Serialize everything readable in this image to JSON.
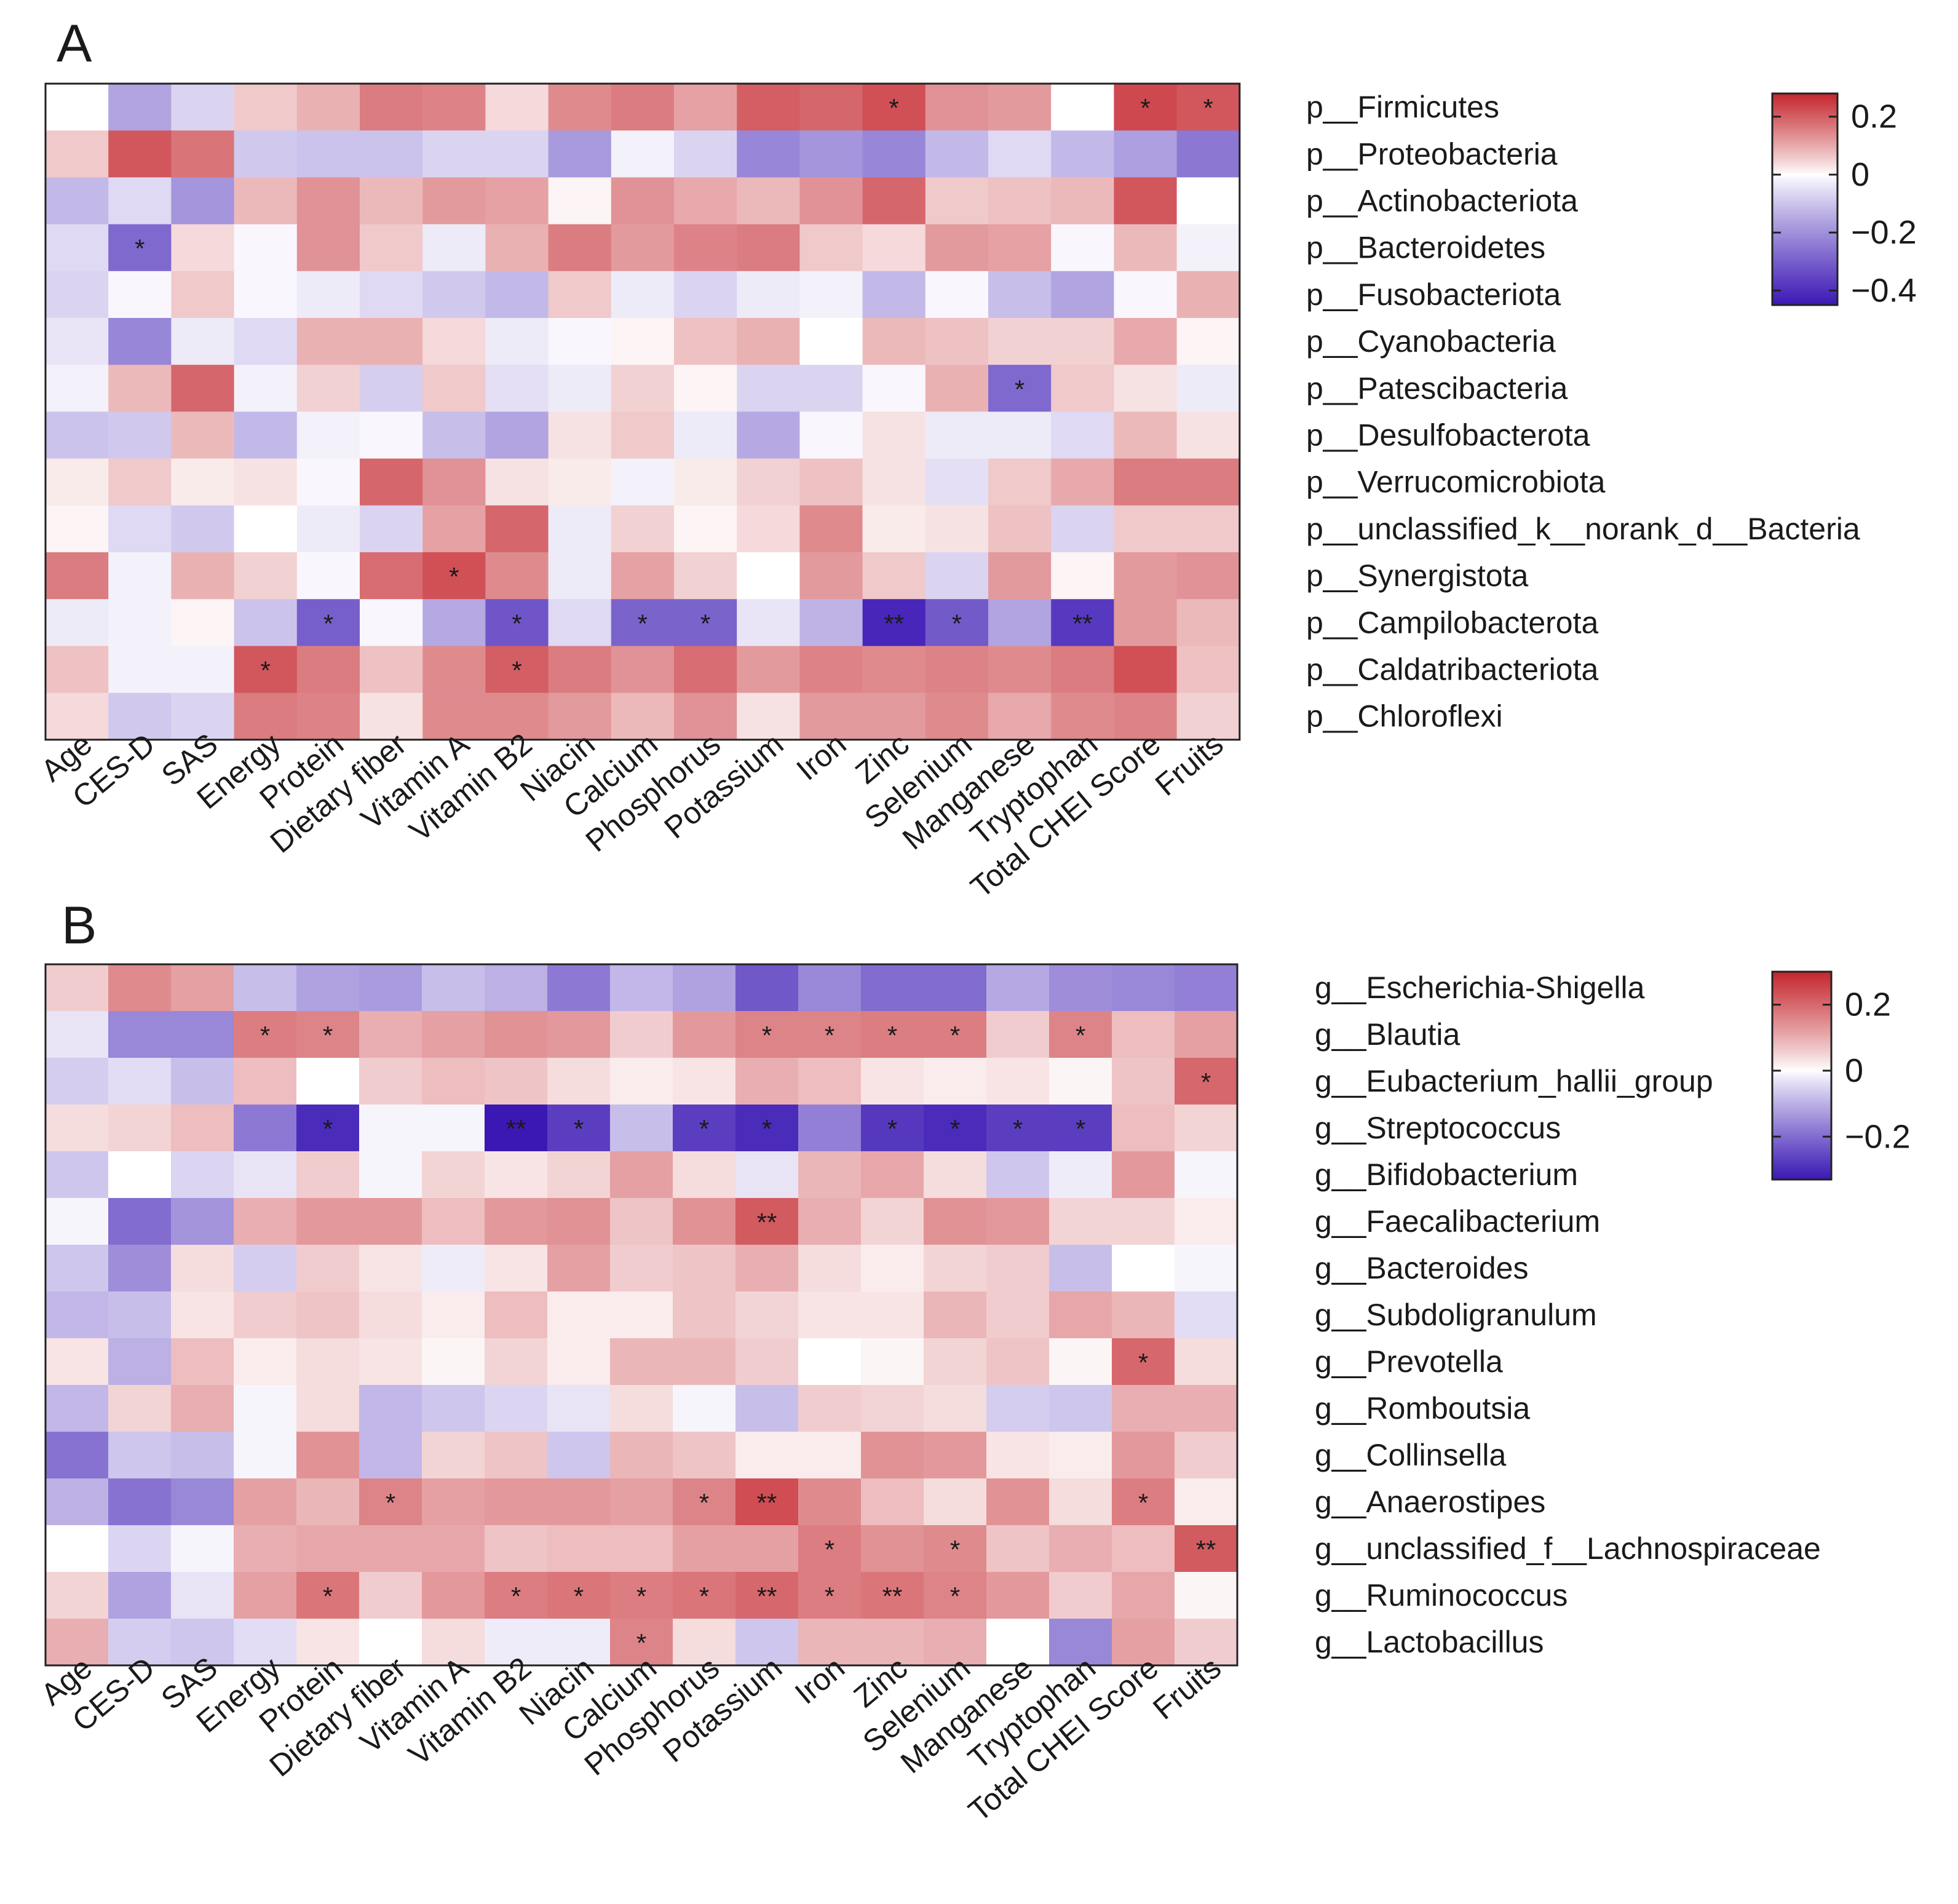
{
  "chart_data": [
    {
      "type": "heatmap",
      "panel_label": "A",
      "columns": [
        "Age",
        "CES-D",
        "SAS",
        "Energy",
        "Protein",
        "Dietary fiber",
        "Vitamin A",
        "Vitamin B2",
        "Niacin",
        "Calcium",
        "Phosphorus",
        "Potassium",
        "Iron",
        "Zinc",
        "Selenium",
        "Manganese",
        "Tryptophan",
        "Total CHEI Score",
        "Fruits"
      ],
      "rows": [
        "p__Firmicutes",
        "p__Proteobacteria",
        "p__Actinobacteriota",
        "p__Bacteroidetes",
        "p__Fusobacteriota",
        "p__Cyanobacteria",
        "p__Patescibacteria",
        "p__Desulfobacterota",
        "p__Verrucomicrobiota",
        "p__unclassified_k__norank_d__Bacteria",
        "p__Synergistota",
        "p__Campilobacterota",
        "p__Caldatribacteriota",
        "p__Chloroflexi"
      ],
      "values": [
        [
          0.0,
          -0.16,
          -0.07,
          0.06,
          0.09,
          0.16,
          0.15,
          0.04,
          0.14,
          0.16,
          0.11,
          0.2,
          0.19,
          0.22,
          0.13,
          0.12,
          0.0,
          0.23,
          0.21
        ],
        [
          0.06,
          0.21,
          0.17,
          -0.09,
          -0.1,
          -0.1,
          -0.07,
          -0.07,
          -0.18,
          -0.02,
          -0.07,
          -0.22,
          -0.19,
          -0.22,
          -0.12,
          -0.06,
          -0.12,
          -0.17,
          -0.25
        ],
        [
          -0.12,
          -0.06,
          -0.19,
          0.08,
          0.13,
          0.08,
          0.12,
          0.11,
          0.01,
          0.13,
          0.1,
          0.08,
          0.13,
          0.19,
          0.06,
          0.07,
          0.08,
          0.21,
          0.0
        ],
        [
          -0.06,
          -0.28,
          0.04,
          -0.01,
          0.13,
          0.06,
          -0.03,
          0.09,
          0.16,
          0.12,
          0.15,
          0.16,
          0.06,
          0.04,
          0.12,
          0.11,
          -0.01,
          0.08,
          -0.02
        ],
        [
          -0.07,
          -0.01,
          0.06,
          -0.01,
          -0.03,
          -0.06,
          -0.09,
          -0.12,
          0.06,
          -0.03,
          -0.07,
          -0.03,
          -0.02,
          -0.12,
          -0.01,
          -0.11,
          -0.16,
          -0.01,
          0.09
        ],
        [
          -0.04,
          -0.22,
          -0.03,
          -0.06,
          0.09,
          0.09,
          0.04,
          -0.03,
          -0.01,
          0.01,
          0.07,
          0.09,
          0.0,
          0.08,
          0.07,
          0.05,
          0.05,
          0.1,
          0.01
        ],
        [
          -0.02,
          0.08,
          0.19,
          -0.02,
          0.05,
          -0.08,
          0.06,
          -0.05,
          -0.03,
          0.05,
          0.01,
          -0.07,
          -0.07,
          -0.01,
          0.09,
          -0.28,
          0.06,
          0.03,
          -0.03
        ],
        [
          -0.1,
          -0.09,
          0.08,
          -0.12,
          -0.02,
          -0.01,
          -0.11,
          -0.16,
          0.03,
          0.06,
          -0.03,
          -0.15,
          -0.01,
          0.03,
          -0.03,
          -0.03,
          -0.06,
          0.08,
          0.03
        ],
        [
          0.02,
          0.06,
          0.02,
          0.03,
          -0.01,
          0.19,
          0.13,
          0.03,
          0.02,
          -0.02,
          0.02,
          0.05,
          0.07,
          0.03,
          -0.05,
          0.06,
          0.1,
          0.16,
          0.16
        ],
        [
          0.01,
          -0.06,
          -0.09,
          0.0,
          -0.03,
          -0.07,
          0.11,
          0.19,
          -0.03,
          0.05,
          0.01,
          0.04,
          0.14,
          0.02,
          0.03,
          0.07,
          -0.07,
          0.06,
          0.06
        ],
        [
          0.16,
          -0.02,
          0.09,
          0.05,
          -0.01,
          0.18,
          0.22,
          0.14,
          -0.03,
          0.11,
          0.05,
          0.0,
          0.12,
          0.06,
          -0.07,
          0.12,
          0.01,
          0.12,
          0.13
        ],
        [
          -0.03,
          -0.02,
          0.01,
          -0.1,
          -0.3,
          -0.01,
          -0.15,
          -0.32,
          -0.06,
          -0.29,
          -0.29,
          -0.04,
          -0.13,
          -0.42,
          -0.31,
          -0.16,
          -0.38,
          0.12,
          0.08
        ],
        [
          0.07,
          -0.02,
          -0.02,
          0.21,
          0.16,
          0.07,
          0.14,
          0.2,
          0.16,
          0.13,
          0.18,
          0.12,
          0.15,
          0.14,
          0.15,
          0.14,
          0.16,
          0.22,
          0.07
        ],
        [
          0.04,
          -0.09,
          -0.07,
          0.16,
          0.15,
          0.03,
          0.14,
          0.14,
          0.12,
          0.08,
          0.13,
          0.03,
          0.12,
          0.12,
          0.14,
          0.1,
          0.14,
          0.15,
          0.05
        ]
      ],
      "significance": [
        {
          "row": 0,
          "col": 13,
          "label": "*"
        },
        {
          "row": 0,
          "col": 17,
          "label": "*"
        },
        {
          "row": 0,
          "col": 18,
          "label": "*"
        },
        {
          "row": 3,
          "col": 1,
          "label": "*"
        },
        {
          "row": 6,
          "col": 15,
          "label": "*"
        },
        {
          "row": 10,
          "col": 6,
          "label": "*"
        },
        {
          "row": 11,
          "col": 4,
          "label": "*"
        },
        {
          "row": 11,
          "col": 7,
          "label": "*"
        },
        {
          "row": 11,
          "col": 9,
          "label": "*"
        },
        {
          "row": 11,
          "col": 10,
          "label": "*"
        },
        {
          "row": 11,
          "col": 13,
          "label": "**"
        },
        {
          "row": 11,
          "col": 14,
          "label": "*"
        },
        {
          "row": 11,
          "col": 16,
          "label": "**"
        },
        {
          "row": 12,
          "col": 3,
          "label": "*"
        },
        {
          "row": 12,
          "col": 7,
          "label": "*"
        }
      ],
      "colorbar": {
        "min": -0.45,
        "max": 0.28,
        "ticks": [
          0.2,
          0,
          -0.2,
          -0.4
        ],
        "tick_labels": [
          "0.2",
          "0",
          "−0.2",
          "−0.4"
        ]
      }
    },
    {
      "type": "heatmap",
      "panel_label": "B",
      "columns": [
        "Age",
        "CES-D",
        "SAS",
        "Energy",
        "Protein",
        "Dietary fiber",
        "Vitamin A",
        "Vitamin B2",
        "Niacin",
        "Calcium",
        "Phosphorus",
        "Potassium",
        "Iron",
        "Zinc",
        "Selenium",
        "Manganese",
        "Tryptophan",
        "Total CHEI Score",
        "Fruits"
      ],
      "rows": [
        "g__Escherichia-Shigella",
        "g__Blautia",
        "g__Eubacterium_hallii_group",
        "g__Streptococcus",
        "g__Bifidobacterium",
        "g__Faecalibacterium",
        "g__Bacteroides",
        "g__Subdoligranulum",
        "g__Prevotella",
        "g__Romboutsia",
        "g__Collinsella",
        "g__Anaerostipes",
        "g__unclassified_f__Lachnospiraceae",
        "g__Ruminococcus",
        "g__Lactobacillus"
      ],
      "values": [
        [
          0.06,
          0.15,
          0.12,
          -0.08,
          -0.12,
          -0.13,
          -0.08,
          -0.1,
          -0.18,
          -0.09,
          -0.12,
          -0.23,
          -0.16,
          -0.2,
          -0.2,
          -0.11,
          -0.15,
          -0.16,
          -0.17
        ],
        [
          -0.03,
          -0.16,
          -0.16,
          0.17,
          0.16,
          0.1,
          0.12,
          0.14,
          0.13,
          0.06,
          0.13,
          0.16,
          0.16,
          0.17,
          0.17,
          0.06,
          0.16,
          0.08,
          0.12
        ],
        [
          -0.06,
          -0.04,
          -0.08,
          0.08,
          0.0,
          0.06,
          0.08,
          0.07,
          0.04,
          0.02,
          0.03,
          0.1,
          0.08,
          0.03,
          0.02,
          0.03,
          0.01,
          0.07,
          0.2
        ],
        [
          0.04,
          0.05,
          0.08,
          -0.18,
          -0.3,
          -0.01,
          -0.01,
          -0.34,
          -0.27,
          -0.08,
          -0.27,
          -0.3,
          -0.17,
          -0.28,
          -0.3,
          -0.27,
          -0.27,
          0.08,
          0.05
        ],
        [
          -0.07,
          0.0,
          -0.05,
          -0.03,
          0.06,
          -0.01,
          0.05,
          0.03,
          0.05,
          0.12,
          0.04,
          -0.03,
          0.09,
          0.11,
          0.04,
          -0.07,
          -0.02,
          0.13,
          -0.01
        ],
        [
          -0.01,
          -0.2,
          -0.14,
          0.1,
          0.13,
          0.13,
          0.08,
          0.13,
          0.14,
          0.07,
          0.14,
          0.22,
          0.1,
          0.05,
          0.14,
          0.13,
          0.05,
          0.05,
          0.02
        ],
        [
          -0.07,
          -0.15,
          0.04,
          -0.06,
          0.06,
          0.03,
          -0.02,
          0.03,
          0.12,
          0.06,
          0.07,
          0.1,
          0.04,
          0.02,
          0.05,
          0.06,
          -0.08,
          0.0,
          -0.01
        ],
        [
          -0.09,
          -0.08,
          0.03,
          0.06,
          0.07,
          0.04,
          0.02,
          0.08,
          0.02,
          0.02,
          0.07,
          0.05,
          0.03,
          0.03,
          0.09,
          0.06,
          0.11,
          0.09,
          -0.04
        ],
        [
          0.03,
          -0.1,
          0.08,
          0.02,
          0.04,
          0.03,
          0.01,
          0.05,
          0.02,
          0.09,
          0.09,
          0.06,
          0.0,
          0.01,
          0.05,
          0.07,
          0.01,
          0.2,
          0.04
        ],
        [
          -0.09,
          0.05,
          0.1,
          -0.01,
          0.04,
          -0.09,
          -0.07,
          -0.05,
          -0.03,
          0.04,
          -0.01,
          -0.08,
          0.06,
          0.05,
          0.04,
          -0.06,
          -0.07,
          0.1,
          0.1
        ],
        [
          -0.19,
          -0.07,
          -0.08,
          -0.01,
          0.14,
          -0.09,
          0.05,
          0.07,
          -0.07,
          0.09,
          0.07,
          0.02,
          0.02,
          0.14,
          0.13,
          0.03,
          0.02,
          0.13,
          0.06
        ],
        [
          -0.1,
          -0.19,
          -0.16,
          0.12,
          0.09,
          0.16,
          0.12,
          0.13,
          0.13,
          0.12,
          0.16,
          0.24,
          0.15,
          0.08,
          0.04,
          0.14,
          0.04,
          0.17,
          0.02
        ],
        [
          0.0,
          -0.05,
          -0.01,
          0.1,
          0.11,
          0.11,
          0.11,
          0.07,
          0.08,
          0.08,
          0.12,
          0.12,
          0.17,
          0.14,
          0.15,
          0.07,
          0.1,
          0.08,
          0.22
        ],
        [
          0.05,
          -0.12,
          -0.03,
          0.12,
          0.18,
          0.06,
          0.13,
          0.17,
          0.18,
          0.17,
          0.18,
          0.2,
          0.17,
          0.18,
          0.16,
          0.13,
          0.06,
          0.11,
          0.01
        ],
        [
          0.1,
          -0.06,
          -0.07,
          -0.04,
          0.03,
          0.0,
          0.04,
          -0.02,
          -0.02,
          0.16,
          0.04,
          -0.07,
          0.09,
          0.09,
          0.1,
          0.0,
          -0.16,
          0.12,
          0.06
        ]
      ],
      "significance": [
        {
          "row": 1,
          "col": 3,
          "label": "*"
        },
        {
          "row": 1,
          "col": 4,
          "label": "*"
        },
        {
          "row": 1,
          "col": 11,
          "label": "*"
        },
        {
          "row": 1,
          "col": 12,
          "label": "*"
        },
        {
          "row": 1,
          "col": 13,
          "label": "*"
        },
        {
          "row": 1,
          "col": 14,
          "label": "*"
        },
        {
          "row": 1,
          "col": 16,
          "label": "*"
        },
        {
          "row": 2,
          "col": 18,
          "label": "*"
        },
        {
          "row": 3,
          "col": 4,
          "label": "*"
        },
        {
          "row": 3,
          "col": 7,
          "label": "**"
        },
        {
          "row": 3,
          "col": 8,
          "label": "*"
        },
        {
          "row": 3,
          "col": 10,
          "label": "*"
        },
        {
          "row": 3,
          "col": 11,
          "label": "*"
        },
        {
          "row": 3,
          "col": 13,
          "label": "*"
        },
        {
          "row": 3,
          "col": 14,
          "label": "*"
        },
        {
          "row": 3,
          "col": 15,
          "label": "*"
        },
        {
          "row": 3,
          "col": 16,
          "label": "*"
        },
        {
          "row": 5,
          "col": 11,
          "label": "**"
        },
        {
          "row": 8,
          "col": 17,
          "label": "*"
        },
        {
          "row": 11,
          "col": 5,
          "label": "*"
        },
        {
          "row": 11,
          "col": 10,
          "label": "*"
        },
        {
          "row": 11,
          "col": 11,
          "label": "**"
        },
        {
          "row": 11,
          "col": 17,
          "label": "*"
        },
        {
          "row": 12,
          "col": 12,
          "label": "*"
        },
        {
          "row": 12,
          "col": 14,
          "label": "*"
        },
        {
          "row": 12,
          "col": 18,
          "label": "**"
        },
        {
          "row": 13,
          "col": 4,
          "label": "*"
        },
        {
          "row": 13,
          "col": 7,
          "label": "*"
        },
        {
          "row": 13,
          "col": 8,
          "label": "*"
        },
        {
          "row": 13,
          "col": 9,
          "label": "*"
        },
        {
          "row": 13,
          "col": 10,
          "label": "*"
        },
        {
          "row": 13,
          "col": 11,
          "label": "**"
        },
        {
          "row": 13,
          "col": 12,
          "label": "*"
        },
        {
          "row": 13,
          "col": 13,
          "label": "**"
        },
        {
          "row": 13,
          "col": 14,
          "label": "*"
        },
        {
          "row": 14,
          "col": 9,
          "label": "*"
        }
      ],
      "colorbar": {
        "min": -0.33,
        "max": 0.3,
        "ticks": [
          0.2,
          0,
          -0.2
        ],
        "tick_labels": [
          "0.2",
          "0",
          "−0.2"
        ]
      }
    }
  ],
  "colors": {
    "low": "#3b18b4",
    "mid": "#ffffff",
    "high": "#c4262d",
    "text": "#1a1a1a",
    "border": "#222222"
  }
}
